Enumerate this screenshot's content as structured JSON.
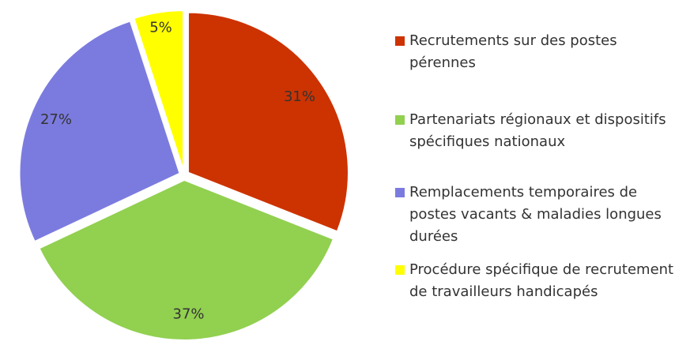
{
  "chart_data": {
    "type": "pie",
    "categories": [
      "Recrutements sur des postes pérennes",
      "Partenariats régionaux et dispositifs spécifiques nationaux",
      "Remplacements temporaires de postes vacants & maladies longues durées",
      "Procédure spécifique de recrutement de travailleurs handicapés"
    ],
    "values": [
      31,
      37,
      27,
      5
    ],
    "value_labels": [
      "31%",
      "37%",
      "27%",
      "5%"
    ],
    "colors": [
      "#cc3300",
      "#92d050",
      "#7b7bdf",
      "#ffff00"
    ],
    "legend": "right"
  }
}
